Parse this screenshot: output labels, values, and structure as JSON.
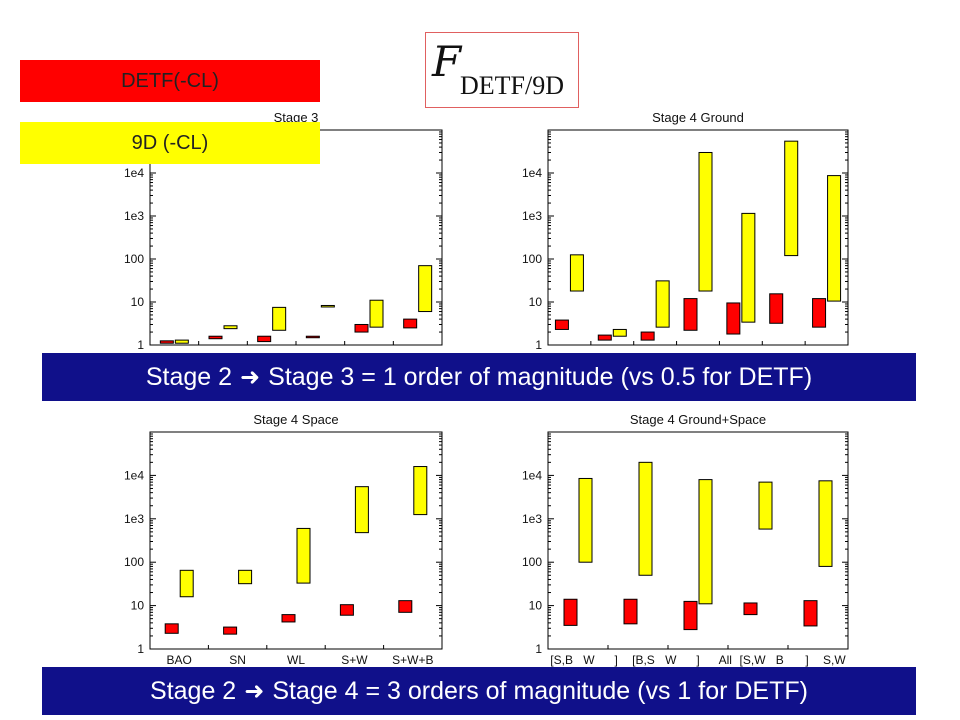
{
  "legend": {
    "red": {
      "label": "DETF(-CL)",
      "color": "#ff0000"
    },
    "yellow": {
      "label": "9D (-CL)",
      "color": "#ffff00"
    }
  },
  "logo": {
    "script": "F",
    "subscript": "DETF/9D"
  },
  "banners": {
    "first": {
      "left": "Stage 2",
      "right": "Stage 3 = 1 order of magnitude (vs 0.5 for DETF)"
    },
    "second": {
      "left": "Stage 2",
      "right": "Stage 4 = 3 orders of magnitude (vs 1 for DETF)"
    }
  },
  "chart_data": [
    {
      "type": "bar",
      "title": "Stage 3",
      "scale": "log",
      "ylim": [
        1,
        100000
      ],
      "yticks": [
        "1",
        "10",
        "100",
        "1e3",
        "1e4"
      ],
      "categories": [
        "",
        "",
        "",
        "",
        "",
        ""
      ],
      "series": [
        {
          "color": "#ff0000",
          "ranges": [
            [
              1.1,
              1.25
            ],
            [
              1.4,
              1.6
            ],
            [
              1.2,
              1.6
            ],
            [
              1.5,
              1.6
            ],
            [
              2.0,
              3.0
            ],
            [
              2.5,
              4.0
            ]
          ]
        },
        {
          "color": "#ffff00",
          "ranges": [
            [
              1.1,
              1.3
            ],
            [
              2.4,
              2.8
            ],
            [
              2.2,
              7.5
            ],
            [
              8.0,
              8.3
            ],
            [
              2.6,
              11
            ],
            [
              6,
              70
            ]
          ]
        }
      ]
    },
    {
      "type": "bar",
      "title": "Stage 4 Ground",
      "scale": "log",
      "ylim": [
        1,
        100000
      ],
      "yticks": [
        "1",
        "10",
        "100",
        "1e3",
        "1e4"
      ],
      "categories": [
        "",
        "",
        "",
        "",
        "",
        "",
        ""
      ],
      "series": [
        {
          "color": "#ff0000",
          "ranges": [
            [
              2.3,
              3.8
            ],
            [
              1.3,
              1.7
            ],
            [
              1.3,
              2.0
            ],
            [
              2.2,
              12
            ],
            [
              1.8,
              9.5
            ],
            [
              3.2,
              15.5
            ],
            [
              2.6,
              12
            ]
          ]
        },
        {
          "color": "#ffff00",
          "ranges": [
            [
              18,
              125
            ],
            [
              1.6,
              2.3
            ],
            [
              2.6,
              31
            ],
            [
              18,
              30000
            ],
            [
              3.4,
              1150
            ],
            [
              120,
              55000
            ],
            [
              10.5,
              8700
            ]
          ]
        }
      ]
    },
    {
      "type": "bar",
      "title": "Stage 4 Space",
      "scale": "log",
      "ylim": [
        1,
        100000
      ],
      "yticks": [
        "1",
        "10",
        "100",
        "1e3",
        "1e4"
      ],
      "categories": [
        "BAO",
        "SN",
        "WL",
        "S+W",
        "S+W+B"
      ],
      "series": [
        {
          "color": "#ff0000",
          "ranges": [
            [
              2.3,
              3.8
            ],
            [
              2.2,
              3.2
            ],
            [
              4.2,
              6.2
            ],
            [
              6,
              10.5
            ],
            [
              7,
              13
            ]
          ]
        },
        {
          "color": "#ffff00",
          "ranges": [
            [
              16,
              65
            ],
            [
              32,
              65
            ],
            [
              33,
              600
            ],
            [
              480,
              5500
            ],
            [
              1250,
              16000
            ]
          ]
        }
      ]
    },
    {
      "type": "bar",
      "title": "Stage 4 Ground+Space",
      "scale": "log",
      "ylim": [
        1,
        100000
      ],
      "yticks": [
        "1",
        "10",
        "100",
        "1e3",
        "1e4"
      ],
      "categories": [
        "[S,B",
        "W",
        "]",
        "[B,S",
        "W",
        "]",
        "All",
        "[S,W",
        "B",
        "]",
        "S,W"
      ],
      "series": [
        {
          "color": "#ff0000",
          "ranges": [
            [
              3.5,
              14
            ],
            [
              3.8,
              14
            ],
            [
              2.8,
              12.5
            ],
            [
              6.2,
              11.5
            ],
            [
              3.4,
              13
            ]
          ]
        },
        {
          "color": "#ffff00",
          "ranges": [
            [
              100,
              8500
            ],
            [
              50,
              20000
            ],
            [
              11,
              8000
            ],
            [
              580,
              7000
            ],
            [
              80,
              7500
            ]
          ]
        }
      ]
    }
  ]
}
